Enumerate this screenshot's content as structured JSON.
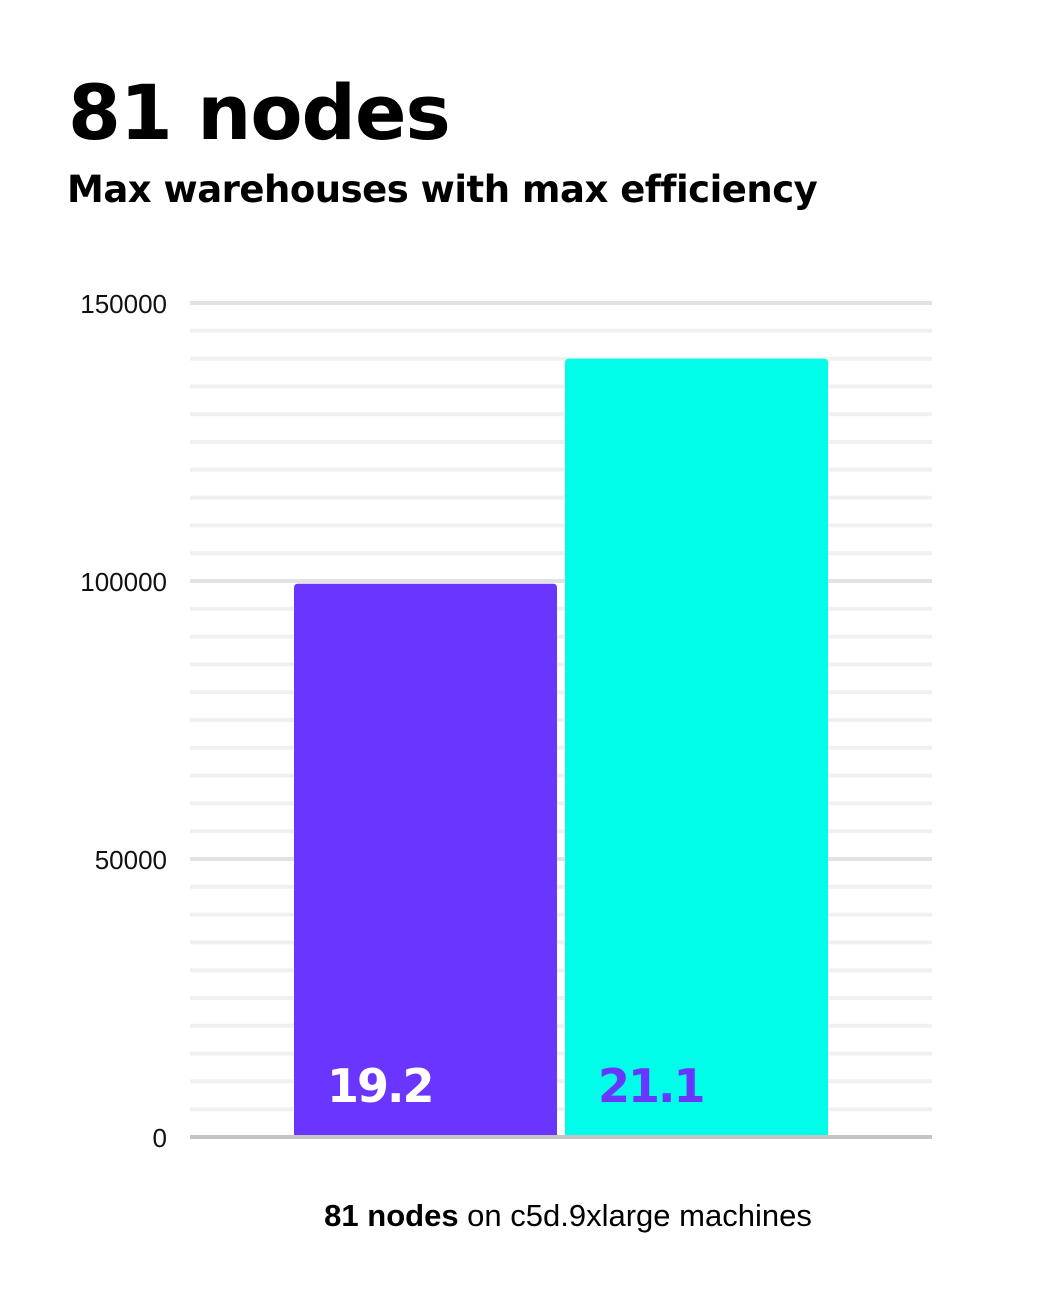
{
  "header": {
    "title": "81 nodes",
    "subtitle": "Max warehouses with max efficiency"
  },
  "chart_data": {
    "type": "bar",
    "title": "81 nodes",
    "subtitle": "Max warehouses with max efficiency",
    "categories": [
      "",
      ""
    ],
    "values": [
      99500,
      140000
    ],
    "data_labels": [
      "19.2",
      "21.1"
    ],
    "colors": [
      "#6a35ff",
      "#00fdea"
    ],
    "data_label_colors": [
      "#ffffff",
      "#6a35ff"
    ],
    "ylim": [
      0,
      150000
    ],
    "yticks": [
      0,
      50000,
      100000,
      150000
    ],
    "ytick_labels": [
      "0",
      "50000",
      "100000",
      "150000"
    ],
    "minor_grid_step": 5000,
    "grid": true,
    "xlabel_bold": "81 nodes",
    "xlabel_rest": " on c5d.9xlarge machines"
  }
}
